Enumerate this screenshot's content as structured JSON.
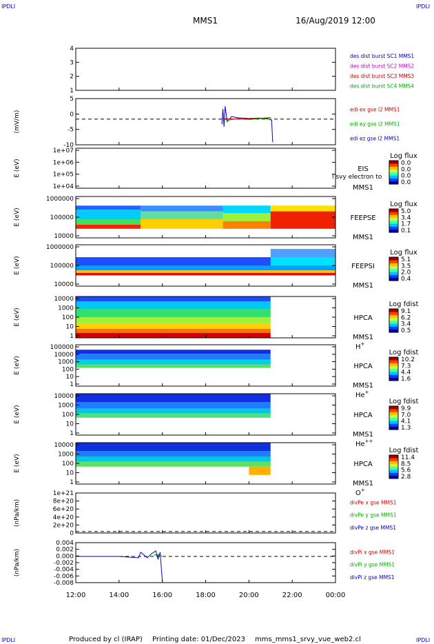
{
  "header": {
    "title": "MMS1",
    "date": "16/Aug/2019 12:00",
    "corner": "IPDLI"
  },
  "footer": {
    "produced": "Produced by cl (IRAP)",
    "printing": "Printing date: 01/Dec/2023",
    "file": "mms_mms1_srvy_vue_web2.cl"
  },
  "colors": {
    "blue": "#0000c8",
    "magenta": "#d000d0",
    "red": "#d00000",
    "green": "#00b000",
    "dashed": "#000000"
  },
  "chart_data": [
    {
      "type": "line",
      "id": "p1",
      "ylabel": "",
      "yticks": [
        "4",
        "3",
        "2",
        "1"
      ],
      "ylim": [
        0.6,
        4.4
      ],
      "legend": [
        {
          "text": "des dist burst SC1 MMS1",
          "color": "#0000c8"
        },
        {
          "text": "des dist burst SC2 MMS2",
          "color": "#d000d0"
        },
        {
          "text": "des dist burst SC3 MMS3",
          "color": "#d00000"
        },
        {
          "text": "des dist burst SC4 MMS4",
          "color": "#00b000"
        }
      ],
      "series": []
    },
    {
      "type": "line",
      "id": "p2",
      "ylabel": "(mV/m)",
      "yticks": [
        "5",
        "0",
        "-5",
        "-10"
      ],
      "ylim": [
        -10,
        8
      ],
      "zero_line": true,
      "legend": [
        {
          "text": "edi ex gse l2 MMS1",
          "color": "#d00000"
        },
        {
          "text": "edi ey gse l2 MMS1",
          "color": "#00b000"
        },
        {
          "text": "edi ez gse l2 MMS1",
          "color": "#0000c8"
        }
      ],
      "series": [
        {
          "color": "#0000c8",
          "x": [
            18.75,
            18.8,
            18.85,
            18.9,
            19.0,
            19.2,
            19.5,
            20.0,
            20.5,
            20.9,
            21.05,
            21.1
          ],
          "y": [
            -2,
            4,
            -3,
            5,
            -1,
            1,
            0.5,
            0.3,
            0.4,
            0.2,
            -0.5,
            -9
          ]
        },
        {
          "color": "#00b000",
          "x": [
            18.75,
            19.0,
            19.5,
            20.0,
            20.5,
            21.0
          ],
          "y": [
            0.5,
            -0.5,
            0.3,
            -0.2,
            0.2,
            0
          ]
        },
        {
          "color": "#d00000",
          "x": [
            18.75,
            19.5,
            20.5,
            21.0
          ],
          "y": [
            0.2,
            0,
            0.3,
            0.6
          ]
        }
      ]
    },
    {
      "type": "heatmap",
      "id": "p3",
      "ylabel": "E (eV)",
      "yticks": [
        "1e+07",
        "1e+06",
        "1e+05",
        "1e+04"
      ],
      "instrument": "EIS",
      "sc": "MMS1",
      "species": "",
      "overlay": "l svy electron to",
      "cbar_title": "Log flux",
      "cbar_ticks": [
        "0.0",
        "0.0",
        "0.0",
        "0.0"
      ],
      "bands": []
    },
    {
      "type": "heatmap",
      "id": "p4",
      "ylabel": "E (eV)",
      "yticks": [
        "1000000",
        "100000",
        "10000"
      ],
      "instrument": "FEEPSE",
      "sc": "MMS1",
      "species": "",
      "cbar_title": "Log flux",
      "cbar_ticks": [
        "5.0",
        "3.4",
        "1.7",
        "0.1"
      ],
      "bands": [
        {
          "x0": 12.0,
          "x1": 15.0,
          "y0": 0.22,
          "y1": 0.32,
          "color": "#1e64ff"
        },
        {
          "x0": 12.0,
          "x1": 15.0,
          "y0": 0.32,
          "y1": 0.55,
          "color": "#00ccff"
        },
        {
          "x0": 12.0,
          "x1": 15.0,
          "y0": 0.55,
          "y1": 0.68,
          "color": "#40e060"
        },
        {
          "x0": 12.0,
          "x1": 15.0,
          "y0": 0.68,
          "y1": 0.78,
          "color": "#ff2000"
        },
        {
          "x0": 15.0,
          "x1": 18.8,
          "y0": 0.22,
          "y1": 0.36,
          "color": "#3a8cff"
        },
        {
          "x0": 15.0,
          "x1": 18.8,
          "y0": 0.36,
          "y1": 0.55,
          "color": "#60e0a0"
        },
        {
          "x0": 15.0,
          "x1": 18.8,
          "y0": 0.55,
          "y1": 0.78,
          "color": "#ffd000"
        },
        {
          "x0": 18.8,
          "x1": 21.0,
          "y0": 0.22,
          "y1": 0.4,
          "color": "#00d8ff"
        },
        {
          "x0": 18.8,
          "x1": 21.0,
          "y0": 0.4,
          "y1": 0.6,
          "color": "#a0f040"
        },
        {
          "x0": 18.8,
          "x1": 21.0,
          "y0": 0.6,
          "y1": 0.78,
          "color": "#ff8000"
        },
        {
          "x0": 21.0,
          "x1": 24.0,
          "y0": 0.22,
          "y1": 0.36,
          "color": "#ffe000"
        },
        {
          "x0": 21.0,
          "x1": 24.0,
          "y0": 0.36,
          "y1": 0.78,
          "color": "#f02000"
        }
      ]
    },
    {
      "type": "heatmap",
      "id": "p5",
      "ylabel": "E (eV)",
      "yticks": [
        "1000000",
        "100000",
        "10000"
      ],
      "instrument": "FEEPSI",
      "sc": "MMS1",
      "species": "",
      "cbar_title": "Log flux",
      "cbar_ticks": [
        "5.1",
        "3.5",
        "2.0",
        "0.4"
      ],
      "bands": [
        {
          "x0": 12.0,
          "x1": 24.0,
          "y0": 0.3,
          "y1": 0.5,
          "color": "#1e50ff"
        },
        {
          "x0": 12.0,
          "x1": 24.0,
          "y0": 0.5,
          "y1": 0.62,
          "color": "#00a0ff"
        },
        {
          "x0": 12.0,
          "x1": 24.0,
          "y0": 0.62,
          "y1": 0.68,
          "color": "#ffc000"
        },
        {
          "x0": 12.0,
          "x1": 24.0,
          "y0": 0.68,
          "y1": 0.74,
          "color": "#e01000"
        },
        {
          "x0": 21.0,
          "x1": 24.0,
          "y0": 0.1,
          "y1": 0.3,
          "color": "#50a0ff"
        },
        {
          "x0": 21.0,
          "x1": 24.0,
          "y0": 0.3,
          "y1": 0.5,
          "color": "#00e0ff"
        }
      ]
    },
    {
      "type": "heatmap",
      "id": "p6",
      "ylabel": "E (eV)",
      "yticks": [
        "10000",
        "1000",
        "100",
        "10",
        "1"
      ],
      "instrument": "HPCA",
      "sc": "MMS1",
      "species": "H",
      "species_sup": "+",
      "cbar_title": "Log fdist",
      "cbar_ticks": [
        "9.1",
        "6.2",
        "3.4",
        "0.5"
      ],
      "bands": [
        {
          "x0": 12.0,
          "x1": 21.0,
          "y0": 0.0,
          "y1": 0.12,
          "color": "#1a4cff"
        },
        {
          "x0": 12.0,
          "x1": 21.0,
          "y0": 0.12,
          "y1": 0.3,
          "color": "#00c8ff"
        },
        {
          "x0": 12.0,
          "x1": 21.0,
          "y0": 0.3,
          "y1": 0.5,
          "color": "#30e070"
        },
        {
          "x0": 12.0,
          "x1": 21.0,
          "y0": 0.5,
          "y1": 0.66,
          "color": "#a0f040"
        },
        {
          "x0": 12.0,
          "x1": 21.0,
          "y0": 0.66,
          "y1": 0.78,
          "color": "#ffd000"
        },
        {
          "x0": 12.0,
          "x1": 21.0,
          "y0": 0.78,
          "y1": 0.88,
          "color": "#ff7000"
        },
        {
          "x0": 12.0,
          "x1": 21.0,
          "y0": 0.88,
          "y1": 1.0,
          "color": "#d00000"
        }
      ]
    },
    {
      "type": "heatmap",
      "id": "p7",
      "ylabel": "E (eV)",
      "yticks": [
        "100000",
        "10000",
        "1000",
        "100",
        "10",
        "1"
      ],
      "instrument": "HPCA",
      "sc": "MMS1",
      "species": "He",
      "species_sup": "+",
      "cbar_title": "Log fdist",
      "cbar_ticks": [
        "10.2",
        "7.3",
        "4.4",
        "1.6"
      ],
      "bands": [
        {
          "x0": 12.0,
          "x1": 21.0,
          "y0": 0.12,
          "y1": 0.22,
          "color": "#1030e0"
        },
        {
          "x0": 12.0,
          "x1": 21.0,
          "y0": 0.22,
          "y1": 0.36,
          "color": "#1e7cff"
        },
        {
          "x0": 12.0,
          "x1": 21.0,
          "y0": 0.36,
          "y1": 0.48,
          "color": "#00d0e0"
        },
        {
          "x0": 12.0,
          "x1": 21.0,
          "y0": 0.48,
          "y1": 0.56,
          "color": "#60e060"
        }
      ]
    },
    {
      "type": "heatmap",
      "id": "p8",
      "ylabel": "E (eV)",
      "yticks": [
        "10000",
        "1000",
        "100",
        "10",
        "1"
      ],
      "instrument": "HPCA",
      "sc": "MMS1",
      "species": "He",
      "species_sup": "++",
      "cbar_title": "Log fdist",
      "cbar_ticks": [
        "9.9",
        "7.0",
        "4.1",
        "1.3"
      ],
      "bands": [
        {
          "x0": 12.0,
          "x1": 21.0,
          "y0": 0.0,
          "y1": 0.2,
          "color": "#1030e0"
        },
        {
          "x0": 12.0,
          "x1": 21.0,
          "y0": 0.2,
          "y1": 0.36,
          "color": "#1e7cff"
        },
        {
          "x0": 12.0,
          "x1": 21.0,
          "y0": 0.36,
          "y1": 0.48,
          "color": "#00c8e0"
        },
        {
          "x0": 12.0,
          "x1": 21.0,
          "y0": 0.48,
          "y1": 0.58,
          "color": "#50e080"
        }
      ]
    },
    {
      "type": "heatmap",
      "id": "p9",
      "ylabel": "E (eV)",
      "yticks": [
        "10000",
        "1000",
        "100",
        "10",
        "1"
      ],
      "instrument": "HPCA",
      "sc": "MMS1",
      "species": "O",
      "species_sup": "+",
      "cbar_title": "Log fdist",
      "cbar_ticks": [
        "11.4",
        "8.5",
        "5.6",
        "2.8"
      ],
      "bands": [
        {
          "x0": 12.0,
          "x1": 21.0,
          "y0": 0.0,
          "y1": 0.2,
          "color": "#1030e0"
        },
        {
          "x0": 12.0,
          "x1": 21.0,
          "y0": 0.2,
          "y1": 0.34,
          "color": "#1e7cff"
        },
        {
          "x0": 12.0,
          "x1": 21.0,
          "y0": 0.34,
          "y1": 0.46,
          "color": "#00c8e0"
        },
        {
          "x0": 12.0,
          "x1": 21.0,
          "y0": 0.46,
          "y1": 0.58,
          "color": "#60e060"
        },
        {
          "x0": 20.0,
          "x1": 21.0,
          "y0": 0.58,
          "y1": 0.78,
          "color": "#ffb000"
        }
      ]
    },
    {
      "type": "line",
      "id": "p10",
      "ylabel": "(nPa/km)",
      "yticks": [
        "1e+21",
        "8e+20",
        "6e+20",
        "4e+20",
        "2e+20",
        "0"
      ],
      "ylim": [
        -0.4,
        10.8
      ],
      "zero_line": true,
      "legend": [
        {
          "text": "divPe x gse MMS1",
          "color": "#d00000"
        },
        {
          "text": "divPe y gse MMS1",
          "color": "#00b000"
        },
        {
          "text": "divPe z gse MMS1",
          "color": "#0000c8"
        }
      ],
      "series": []
    },
    {
      "type": "line",
      "id": "p11",
      "ylabel": "(nPa/km)",
      "yticks": [
        "0.004",
        "0.002",
        "0.000",
        "-0.002",
        "-0.004",
        "-0.006",
        "-0.008"
      ],
      "ylim": [
        -0.0095,
        0.005
      ],
      "zero_line": true,
      "legend": [
        {
          "text": "divPi x gse MMS1",
          "color": "#d00000"
        },
        {
          "text": "divPi y gse MMS1",
          "color": "#00b000"
        },
        {
          "text": "divPi z gse MMS1",
          "color": "#0000c8"
        }
      ],
      "series": [
        {
          "color": "#0000c8",
          "x": [
            12.0,
            13.0,
            14.0,
            14.9,
            15.0,
            15.3,
            15.5,
            15.7,
            15.8,
            15.9,
            15.95,
            16.0
          ],
          "y": [
            0.0,
            0.0,
            0.0,
            -0.0005,
            0.0015,
            -0.0005,
            0.001,
            0.002,
            -0.001,
            0.0015,
            -0.004,
            -0.009
          ]
        },
        {
          "color": "#00b000",
          "x": [
            15.6,
            15.8,
            16.0
          ],
          "y": [
            0.0005,
            0.0008,
            0.0
          ]
        },
        {
          "color": "#d00000",
          "x": [
            15.7,
            15.9
          ],
          "y": [
            0.0003,
            0.0004
          ]
        }
      ]
    }
  ],
  "xaxis": {
    "ticks": [
      "12:00",
      "14:00",
      "16:00",
      "18:00",
      "20:00",
      "22:00",
      "00:00"
    ],
    "range": [
      12,
      24
    ]
  }
}
